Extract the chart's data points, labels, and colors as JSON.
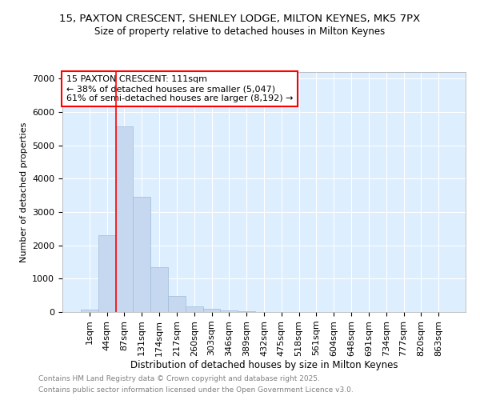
{
  "title1": "15, PAXTON CRESCENT, SHENLEY LODGE, MILTON KEYNES, MK5 7PX",
  "title2": "Size of property relative to detached houses in Milton Keynes",
  "xlabel": "Distribution of detached houses by size in Milton Keynes",
  "ylabel": "Number of detached properties",
  "categories": [
    "1sqm",
    "44sqm",
    "87sqm",
    "131sqm",
    "174sqm",
    "217sqm",
    "260sqm",
    "303sqm",
    "346sqm",
    "389sqm",
    "432sqm",
    "475sqm",
    "518sqm",
    "561sqm",
    "604sqm",
    "648sqm",
    "691sqm",
    "734sqm",
    "777sqm",
    "820sqm",
    "863sqm"
  ],
  "values": [
    75,
    2300,
    5580,
    3450,
    1350,
    480,
    170,
    90,
    55,
    30,
    5,
    2,
    1,
    0,
    0,
    0,
    0,
    0,
    0,
    0,
    0
  ],
  "bar_color": "#c5d8f0",
  "bar_edgecolor": "#a0bcd8",
  "vline_x": 1.5,
  "vline_color": "red",
  "annotation_text": "15 PAXTON CRESCENT: 111sqm\n← 38% of detached houses are smaller (5,047)\n61% of semi-detached houses are larger (8,192) →",
  "ylim": [
    0,
    7200
  ],
  "yticks": [
    0,
    1000,
    2000,
    3000,
    4000,
    5000,
    6000,
    7000
  ],
  "bg_color": "#ddeeff",
  "footer1": "Contains HM Land Registry data © Crown copyright and database right 2025.",
  "footer2": "Contains public sector information licensed under the Open Government Licence v3.0.",
  "title1_fontsize": 9.5,
  "title2_fontsize": 8.5,
  "xlabel_fontsize": 8.5,
  "ylabel_fontsize": 8,
  "tick_fontsize": 8,
  "annotation_fontsize": 8,
  "footer_fontsize": 6.5
}
